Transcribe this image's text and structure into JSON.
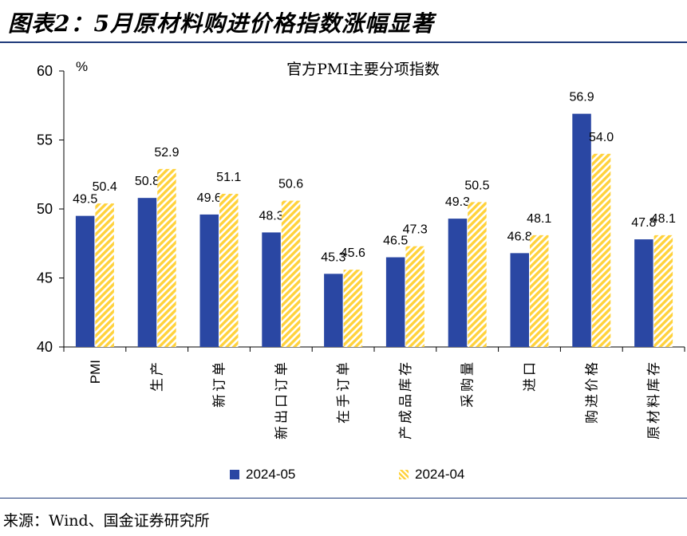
{
  "figure_title": "图表2：5月原材料购进价格指数涨幅显著",
  "source_note": "来源：Wind、国金证券研究所",
  "colors": {
    "series_2024_05": "#2a47a3",
    "series_2024_04": "#ffd23c",
    "rule": "#1f3a7a"
  },
  "chart_data": {
    "type": "bar",
    "title": "官方PMI主要分项指数",
    "ylabel": "%",
    "xlabel": "",
    "ylim": [
      40,
      60
    ],
    "yticks": [
      40,
      45,
      50,
      55,
      60
    ],
    "categories": [
      "PMI",
      "生产",
      "新订单",
      "新出口订单",
      "在手订单",
      "产成品库存",
      "采购量",
      "进口",
      "购进价格",
      "原材料库存"
    ],
    "series": [
      {
        "name": "2024-05",
        "values": [
          49.5,
          50.8,
          49.6,
          48.3,
          45.3,
          46.5,
          49.3,
          46.8,
          56.9,
          47.8
        ],
        "labels": [
          "49.5",
          "50.8",
          "49.6",
          "48.3",
          "45.3",
          "46.5",
          "49.3",
          "46.8",
          "56.9",
          "47.8"
        ]
      },
      {
        "name": "2024-04",
        "values": [
          50.4,
          52.9,
          51.1,
          50.6,
          45.6,
          47.3,
          50.5,
          48.1,
          54.0,
          48.1
        ],
        "labels": [
          "50.4",
          "52.9",
          "51.1",
          "50.6",
          "45.6",
          "47.3",
          "50.5",
          "48.1",
          "54.0",
          "48.1"
        ]
      }
    ],
    "legend_position": "bottom",
    "grid": false
  }
}
